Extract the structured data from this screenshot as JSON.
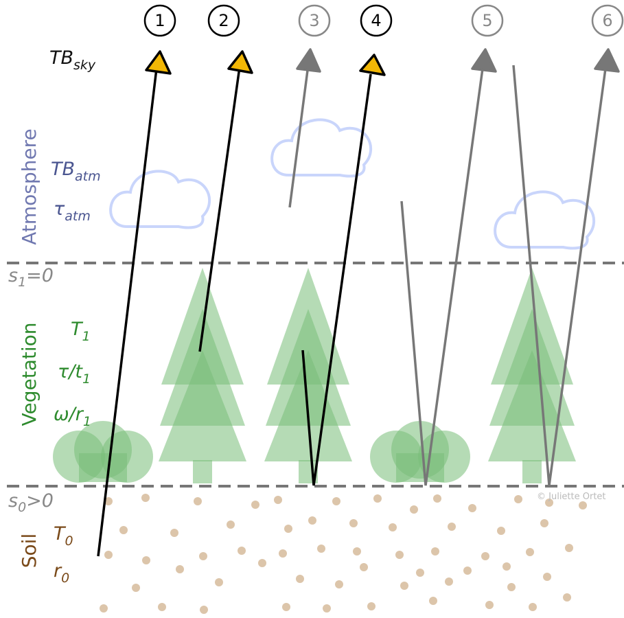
{
  "markers": [
    "1",
    "2",
    "3",
    "4",
    "5",
    "6"
  ],
  "labels": {
    "tb_sky": {
      "main": "TB",
      "sub": "sky"
    },
    "atmosphere": "Atmosphere",
    "tb_atm": {
      "main": "TB",
      "sub": "atm"
    },
    "tau_atm": {
      "main": "τ",
      "sub": "atm"
    },
    "s1": {
      "main": "s",
      "sub": "1",
      "rest": "=0"
    },
    "vegetation": "Vegetation",
    "t1": {
      "main": "T",
      "sub": "1"
    },
    "tau_t1": {
      "main": "τ/t",
      "sub": "1"
    },
    "omega_r1": {
      "main": "ω/r",
      "sub": "1"
    },
    "s0": {
      "main": "s",
      "sub": "0",
      "rest": ">0"
    },
    "soil": "Soil",
    "t0": {
      "main": "T",
      "sub": "0"
    },
    "r0": {
      "main": "r",
      "sub": "0"
    }
  },
  "credit": "© Juliette Ortet"
}
